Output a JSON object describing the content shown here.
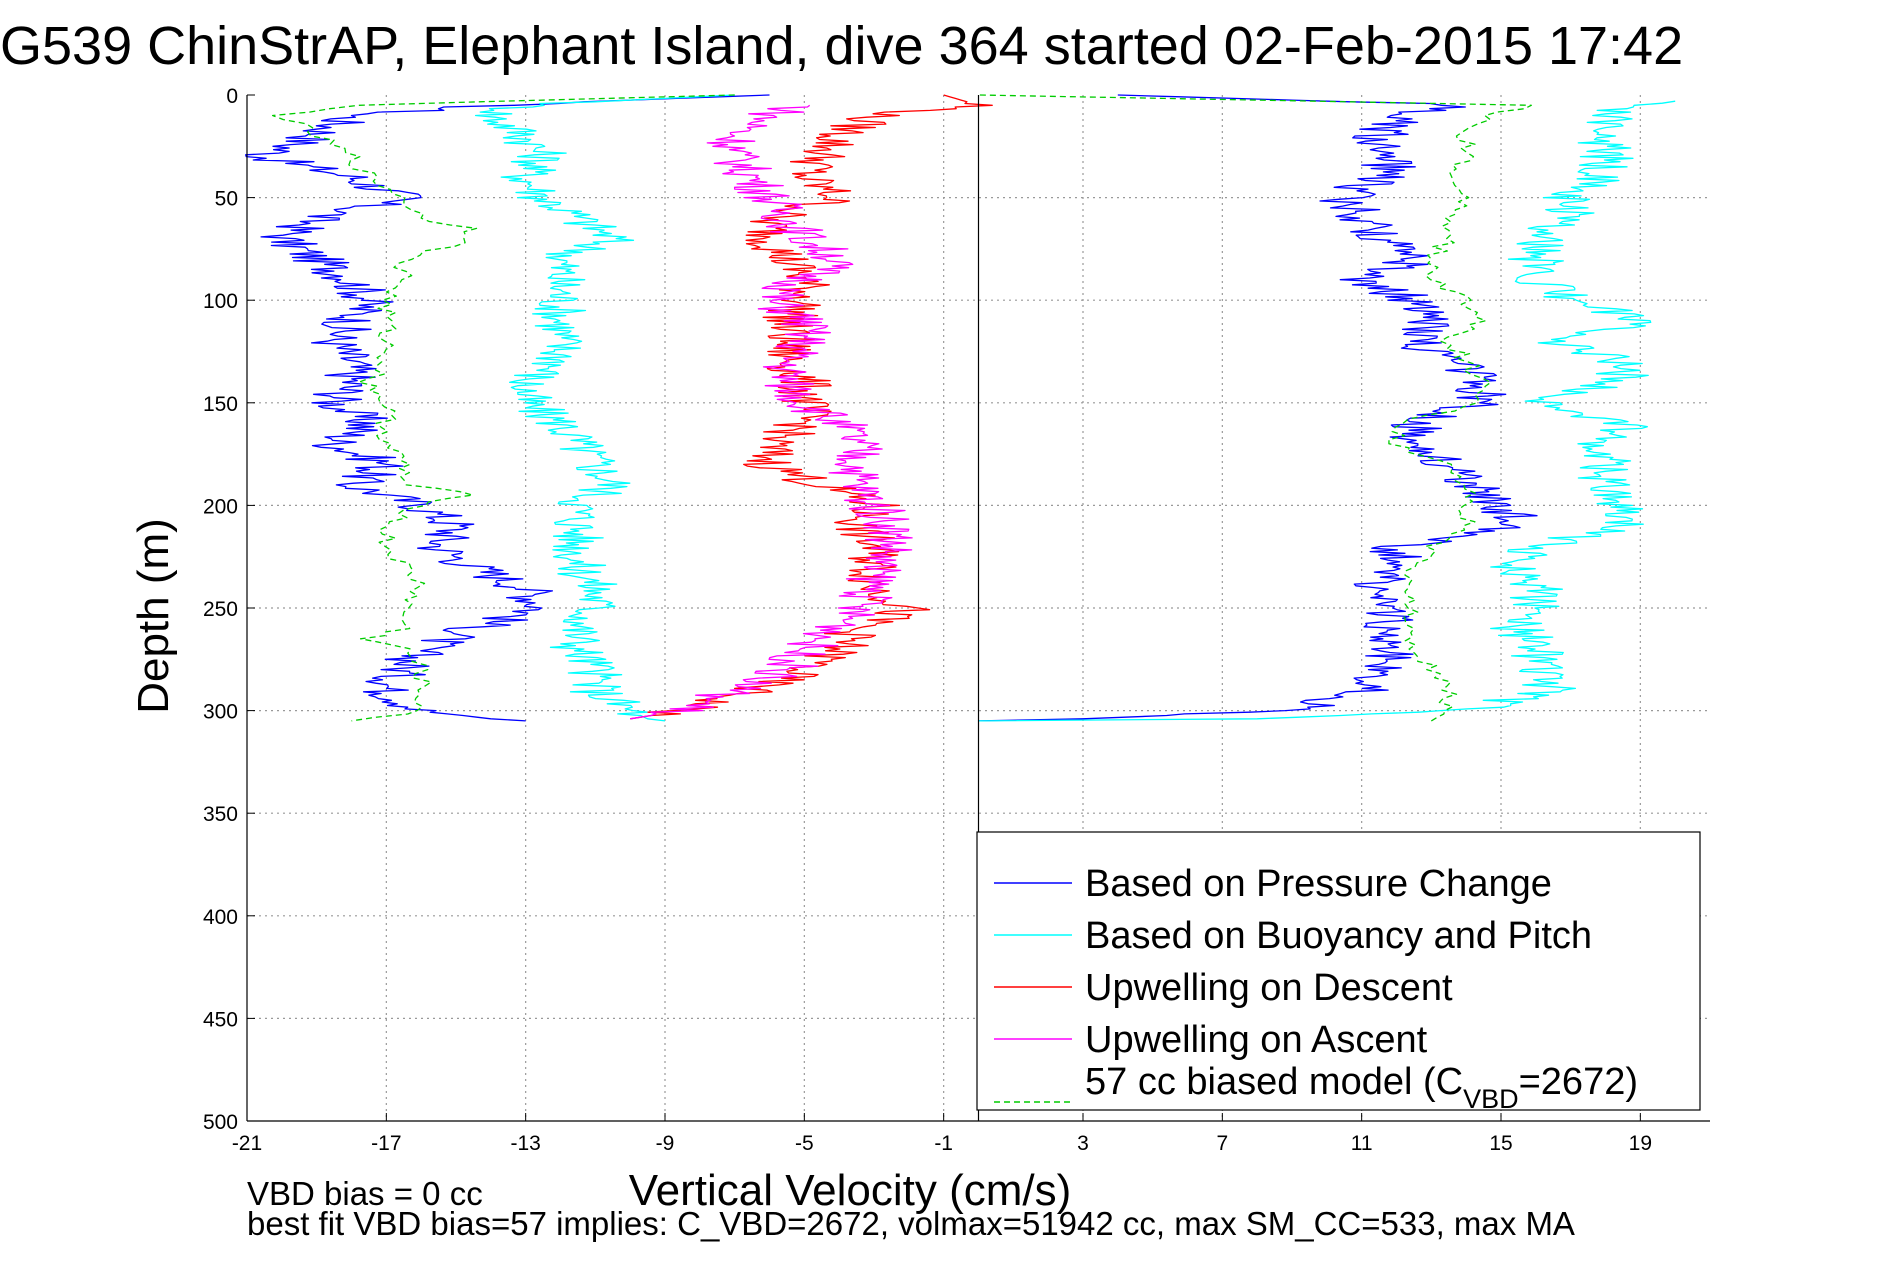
{
  "chart_data": {
    "type": "line",
    "title": "G539 ChinStrAP, Elephant Island, dive 364 started 02-Feb-2015 17:42",
    "xlabel": "Vertical Velocity (cm/s)",
    "ylabel": "Depth (m)",
    "xlim": [
      -21,
      21
    ],
    "ylim": [
      0,
      500
    ],
    "y_reversed": true,
    "grid": true,
    "x_ticks": [
      "-21",
      "-17",
      "-13",
      "-9",
      "-5",
      "-1",
      "3",
      "7",
      "11",
      "15",
      "19"
    ],
    "y_ticks": [
      "0",
      "50",
      "100",
      "150",
      "200",
      "250",
      "300",
      "350",
      "400",
      "450",
      "500"
    ],
    "zero_line_x": 0,
    "legend": {
      "placement": "lower-right",
      "entries": [
        {
          "label": "Based on Pressure Change",
          "color": "#0000ff",
          "style": "solid"
        },
        {
          "label": "Based on Buoyancy and Pitch",
          "color": "#00ffff",
          "style": "solid"
        },
        {
          "label": "Upwelling on Descent",
          "color": "#ff0000",
          "style": "solid"
        },
        {
          "label": "Upwelling on Ascent",
          "color": "#ff00ff",
          "style": "solid"
        },
        {
          "label_prefix": "57 cc biased model (C",
          "label_sub": "VBD",
          "label_suffix": "=2672)",
          "color": "#00cc00",
          "style": "dashed"
        }
      ]
    },
    "series": [
      {
        "name": "Based on Pressure Change",
        "color": "#0000ff",
        "style": "solid",
        "depth": [
          0,
          5,
          10,
          20,
          30,
          40,
          50,
          60,
          70,
          80,
          90,
          100,
          110,
          120,
          130,
          140,
          150,
          160,
          170,
          180,
          190,
          200,
          210,
          220,
          230,
          240,
          250,
          260,
          270,
          280,
          290,
          300,
          304,
          305
        ],
        "velocity": [
          -6,
          -14,
          -18,
          -19,
          -20.5,
          -18,
          -16.5,
          -19,
          -20,
          -19,
          -18,
          -17.5,
          -18,
          -18.5,
          -18,
          -18,
          -18.5,
          -17.5,
          -18.5,
          -17,
          -18,
          -16,
          -15,
          -15.5,
          -14.5,
          -13,
          -12.5,
          -14.5,
          -16,
          -16.5,
          -17,
          -16,
          -14,
          -13
        ]
      },
      {
        "name": "Based on Buoyancy and Pitch",
        "color": "#00ffff",
        "style": "solid",
        "depth": [
          0,
          5,
          10,
          20,
          30,
          40,
          50,
          60,
          70,
          80,
          90,
          100,
          110,
          120,
          130,
          140,
          150,
          160,
          170,
          180,
          190,
          200,
          210,
          220,
          230,
          240,
          250,
          260,
          270,
          280,
          290,
          300,
          304,
          305
        ],
        "velocity": [
          -7,
          -13,
          -14,
          -13,
          -12.5,
          -13,
          -12.5,
          -11.5,
          -10.5,
          -12,
          -12,
          -12,
          -12,
          -12,
          -12,
          -13,
          -13,
          -12,
          -11.5,
          -11,
          -10.5,
          -11.5,
          -11.5,
          -11.5,
          -11.5,
          -11,
          -11,
          -11.5,
          -11.5,
          -11,
          -11,
          -10,
          -9.5,
          -9
        ]
      },
      {
        "name": "Upwelling on Descent",
        "color": "#ff0000",
        "style": "solid",
        "depth": [
          0,
          5,
          10,
          20,
          30,
          40,
          50,
          60,
          70,
          80,
          90,
          100,
          110,
          120,
          130,
          140,
          150,
          160,
          170,
          180,
          190,
          200,
          210,
          220,
          230,
          240,
          250,
          260,
          270,
          280,
          290,
          300,
          304
        ],
        "velocity": [
          -1,
          0,
          -3,
          -4,
          -4.5,
          -5,
          -4,
          -6,
          -6,
          -5.5,
          -5,
          -5,
          -5.5,
          -5.5,
          -5.5,
          -5,
          -5,
          -5,
          -6,
          -6,
          -4.5,
          -3,
          -3.5,
          -3,
          -3,
          -3,
          -2,
          -3.5,
          -4,
          -5,
          -6.5,
          -8.5,
          -10
        ]
      },
      {
        "name": "Upwelling on Ascent",
        "color": "#ff00ff",
        "style": "solid",
        "depth": [
          5,
          10,
          20,
          30,
          40,
          50,
          60,
          70,
          80,
          90,
          100,
          110,
          120,
          130,
          140,
          150,
          160,
          170,
          180,
          190,
          200,
          210,
          220,
          230,
          240,
          250,
          260,
          270,
          280,
          290,
          300,
          304
        ],
        "velocity": [
          -5,
          -6,
          -7,
          -7,
          -6.5,
          -6,
          -5.5,
          -5,
          -4,
          -5,
          -6,
          -5,
          -5,
          -5.5,
          -5.5,
          -5,
          -4,
          -3.5,
          -3.5,
          -3.5,
          -3,
          -2.5,
          -2.5,
          -3,
          -3,
          -3.5,
          -4,
          -5,
          -5.5,
          -7,
          -8.5,
          -10
        ]
      },
      {
        "name": "57 cc biased model",
        "color": "#00cc00",
        "style": "dashed",
        "depth": [
          0,
          5,
          10,
          20,
          30,
          40,
          50,
          60,
          65,
          70,
          80,
          90,
          100,
          110,
          120,
          130,
          140,
          150,
          160,
          170,
          180,
          190,
          195,
          200,
          210,
          220,
          230,
          240,
          250,
          260,
          265,
          270,
          280,
          290,
          300,
          305
        ],
        "velocity": [
          -7,
          -18,
          -20,
          -19,
          -18,
          -17.5,
          -16.5,
          -16,
          -14.5,
          -14.5,
          -16.5,
          -16.5,
          -17,
          -17,
          -17,
          -17,
          -17.5,
          -17,
          -17,
          -17,
          -16.5,
          -16.5,
          -14.5,
          -16,
          -17,
          -17,
          -16.5,
          -16,
          -16.5,
          -16.5,
          -17.5,
          -16.5,
          -16,
          -16,
          -16,
          -18
        ]
      },
      {
        "name": "Based on Pressure Change (ascent)",
        "color": "#0000ff",
        "style": "solid",
        "depth": [
          305,
          304,
          300,
          290,
          280,
          270,
          260,
          250,
          240,
          230,
          220,
          210,
          200,
          190,
          180,
          170,
          160,
          150,
          140,
          130,
          120,
          110,
          100,
          90,
          80,
          70,
          60,
          50,
          40,
          30,
          20,
          10,
          5,
          0
        ],
        "velocity": [
          0,
          3,
          9,
          11,
          11.5,
          12,
          11.5,
          12,
          11.5,
          12,
          12,
          15.5,
          15,
          14,
          13.5,
          12.5,
          12.5,
          14.5,
          14.5,
          13.5,
          12.5,
          13,
          12.5,
          11,
          12.5,
          11.5,
          11,
          10.5,
          11.5,
          12,
          11.5,
          12,
          14,
          4
        ]
      },
      {
        "name": "Based on Buoyancy and Pitch (ascent)",
        "color": "#00ffff",
        "style": "solid",
        "depth": [
          305,
          304,
          300,
          290,
          280,
          270,
          260,
          250,
          240,
          230,
          220,
          210,
          200,
          190,
          180,
          170,
          160,
          150,
          140,
          130,
          120,
          110,
          100,
          90,
          80,
          70,
          60,
          50,
          40,
          30,
          20,
          10,
          5,
          3
        ],
        "velocity": [
          0,
          8,
          14,
          16.5,
          16,
          16,
          15.5,
          16,
          16,
          15.5,
          16,
          18.5,
          18.5,
          18,
          18,
          18,
          18.5,
          16,
          18.5,
          18.5,
          16.5,
          19,
          17,
          16,
          16,
          16,
          17,
          17,
          18,
          18,
          18,
          18,
          19,
          20
        ]
      },
      {
        "name": "57 cc biased model (ascent)",
        "color": "#00cc00",
        "style": "dashed",
        "depth": [
          305,
          300,
          290,
          280,
          270,
          260,
          250,
          240,
          230,
          220,
          210,
          200,
          190,
          180,
          170,
          160,
          150,
          140,
          130,
          120,
          110,
          100,
          90,
          80,
          70,
          60,
          50,
          40,
          30,
          20,
          10,
          5,
          0
        ],
        "velocity": [
          13,
          13.5,
          13.5,
          13,
          12.5,
          12.5,
          12.5,
          12.5,
          12.5,
          13,
          14,
          14,
          14,
          13.5,
          12,
          12,
          14.5,
          14.5,
          14,
          13.5,
          14.5,
          14,
          13,
          13,
          13.5,
          13.5,
          14,
          13.5,
          14,
          14,
          14.5,
          16,
          0
        ]
      }
    ]
  },
  "footer": {
    "line1": "VBD bias = 0 cc",
    "line2": "best fit VBD bias=57 implies: C_VBD=2672, volmax=51942 cc, max SM_CC=533, max MA"
  }
}
